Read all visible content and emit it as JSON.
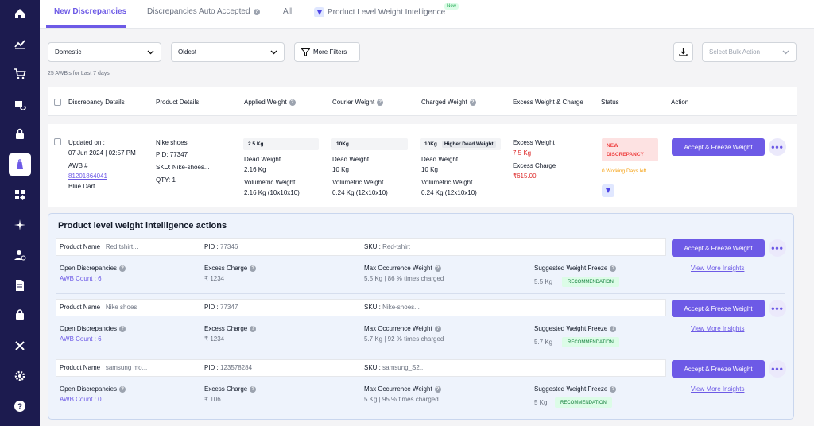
{
  "sidebar": {
    "items": [
      {
        "icon": "home-icon"
      },
      {
        "icon": "analytics-icon"
      },
      {
        "icon": "cart-icon"
      },
      {
        "icon": "returns-icon"
      },
      {
        "icon": "lock-bag-icon"
      },
      {
        "icon": "weight-icon",
        "active": true
      },
      {
        "icon": "apps-icon"
      },
      {
        "icon": "sparkle-icon"
      },
      {
        "icon": "user-check-icon"
      },
      {
        "icon": "document-icon"
      },
      {
        "icon": "bag-icon"
      },
      {
        "icon": "tools-icon"
      },
      {
        "icon": "settings-icon"
      },
      {
        "icon": "help-icon"
      }
    ]
  },
  "tabs": {
    "new_discrepancies": "New Discrepancies",
    "auto_accepted": "Discrepancies Auto Accepted",
    "all": "All",
    "product_level": "Product Level Weight Intelligence",
    "new_badge": "New"
  },
  "filters": {
    "domestic": "Domestic",
    "oldest": "Oldest",
    "more_filters": "More Filters",
    "bulk_action_placeholder": "Select Bulk Action"
  },
  "awb_count_text": "25 AWB's for Last 7 days",
  "table": {
    "headers": {
      "discrepancy_details": "Discrepancy Details",
      "product_details": "Product Details",
      "applied_weight": "Applied Weight",
      "courier_weight": "Courier Weight",
      "charged_weight": "Charged Weight",
      "excess": "Excess Weight & Charge",
      "status": "Status",
      "action": "Action"
    },
    "row": {
      "updated_on_label": "Updated on :",
      "updated_on": "07 Jun 2024 | 02:57 PM",
      "awb_label": "AWB #",
      "awb": "81201864041",
      "courier": "Blue Dart",
      "product_name": "Nike shoes",
      "pid": "PID: 77347",
      "sku": "SKU:  Nike-shoes...",
      "qty": "QTY: 1",
      "applied_box": "2.5 Kg",
      "applied_dead_label": "Dead Weight",
      "applied_dead": "2.16 Kg",
      "applied_vol_label": "Volumetric Weight",
      "applied_vol": "2.16 Kg (10x10x10)",
      "courier_box": "10Kg",
      "courier_dead_label": "Dead Weight",
      "courier_dead": "10 Kg",
      "courier_vol_label": "Volumetric Weight",
      "courier_vol": "0.24 Kg (12x10x10)",
      "charged_box": "10Kg",
      "charged_box_note": "Higher Dead Weight",
      "charged_dead_label": "Dead Weight",
      "charged_dead": "10 Kg",
      "charged_vol_label": "Volumetric Weight",
      "charged_vol": "0.24 Kg (12x10x10)",
      "excess_weight_label": "Excess Weight",
      "excess_weight": "7.5 Kg",
      "excess_charge_label": "Excess Charge",
      "excess_charge": "₹615.00",
      "status_line1": "NEW",
      "status_line2": "DISCREPANCY",
      "working_days": "0 Working Days left",
      "action_button": "Accept & Freeze Weight"
    }
  },
  "pli": {
    "title": "Product level weight intelligence actions",
    "labels": {
      "product_name": "Product Name :",
      "pid": "PID :",
      "sku": "SKU :",
      "open_disc": "Open Discrepancies",
      "excess_charge": "Excess Charge",
      "max_occurrence": "Max Occurrence Weight",
      "suggested_freeze": "Suggested Weight Freeze",
      "recommendation": "RECOMMENDATION",
      "view_more": "View More Insights",
      "action_button": "Accept & Freeze Weight"
    },
    "items": [
      {
        "product_name": "Red tshirt...",
        "pid": "77346",
        "sku": "Red-tshirt",
        "awb_count": "AWB Count : 6",
        "excess_charge": "₹ 1234",
        "max_occurrence": "5.5 Kg | 86 % times charged",
        "suggested": "5.5 Kg"
      },
      {
        "product_name": "Nike shoes",
        "pid": "77347",
        "sku": "Nike-shoes...",
        "awb_count": "AWB Count : 6",
        "excess_charge": "₹ 1234",
        "max_occurrence": "5.7 Kg | 92 % times charged",
        "suggested": "5.7 Kg"
      },
      {
        "product_name": "samsung mo...",
        "pid": "123578284",
        "sku": "samsung_S2...",
        "awb_count": "AWB Count : 0",
        "excess_charge": "₹ 106",
        "max_occurrence": "5 Kg | 95 % times charged",
        "suggested": "5 Kg"
      }
    ]
  }
}
